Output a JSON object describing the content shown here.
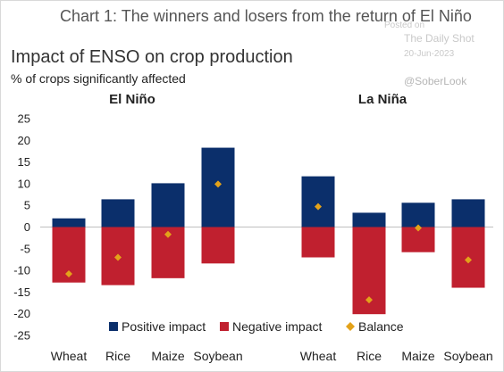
{
  "header": {
    "title": "Chart 1: The winners and losers from the return of El Niño",
    "subtitle": "Impact of ENSO on crop production",
    "ylabel": "% of crops significantly affected"
  },
  "watermark": {
    "posted_on": "Posted on",
    "source": "The Daily Shot",
    "date": "20-Jun-2023",
    "handle": "@SoberLook"
  },
  "chart_data": {
    "type": "bar",
    "ylim": [
      -25,
      25
    ],
    "yticks": [
      25,
      20,
      15,
      10,
      5,
      0,
      -5,
      -10,
      -15,
      -20,
      -25
    ],
    "groups": [
      {
        "name": "El Niño",
        "categories": [
          "Wheat",
          "Rice",
          "Maize",
          "Soybean"
        ],
        "positive": [
          2,
          6.4,
          10.1,
          18.3
        ],
        "negative": [
          -12.8,
          -13.4,
          -11.8,
          -8.4
        ],
        "balance": [
          -10.8,
          -7,
          -1.7,
          9.9
        ]
      },
      {
        "name": "La Niña",
        "categories": [
          "Wheat",
          "Rice",
          "Maize",
          "Soybean"
        ],
        "positive": [
          11.7,
          3.3,
          5.6,
          6.4
        ],
        "negative": [
          -7,
          -20.1,
          -5.8,
          -14
        ],
        "balance": [
          4.7,
          -16.8,
          -0.2,
          -7.6
        ]
      }
    ],
    "legend": [
      {
        "name": "Positive impact",
        "color": "#0b2f6b"
      },
      {
        "name": "Negative impact",
        "color": "#c0202f"
      },
      {
        "name": "Balance",
        "color": "#e3a21a"
      }
    ],
    "legend_position": "bottom"
  }
}
